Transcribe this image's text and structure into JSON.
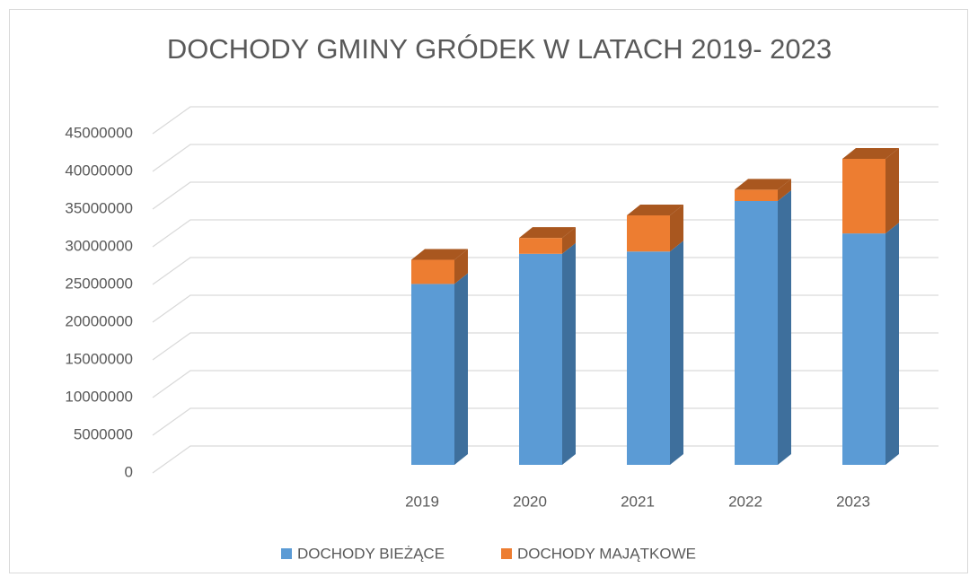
{
  "chart_data": {
    "type": "bar3d_stacked",
    "title": "DOCHODY GMINY GRÓDEK W LATACH 2019- 2023",
    "categories": [
      null,
      null,
      "2019",
      "2020",
      "2021",
      "2022",
      "2023"
    ],
    "series": [
      {
        "name": "DOCHODY BIEŻĄCE",
        "color": "#5b9bd5",
        "side_color": "#3e6f9c",
        "values": [
          null,
          null,
          24000000,
          28000000,
          28300000,
          35000000,
          30700000
        ]
      },
      {
        "name": "DOCHODY MAJĄTKOWE",
        "color": "#ed7d31",
        "side_color": "#a9571f",
        "values": [
          null,
          null,
          3200000,
          2100000,
          4800000,
          1500000,
          9900000
        ]
      }
    ],
    "ylim": [
      0,
      45000000
    ],
    "yticks": [
      0,
      5000000,
      10000000,
      15000000,
      20000000,
      25000000,
      30000000,
      35000000,
      40000000,
      45000000
    ],
    "grid": true,
    "legend": "bottom"
  }
}
